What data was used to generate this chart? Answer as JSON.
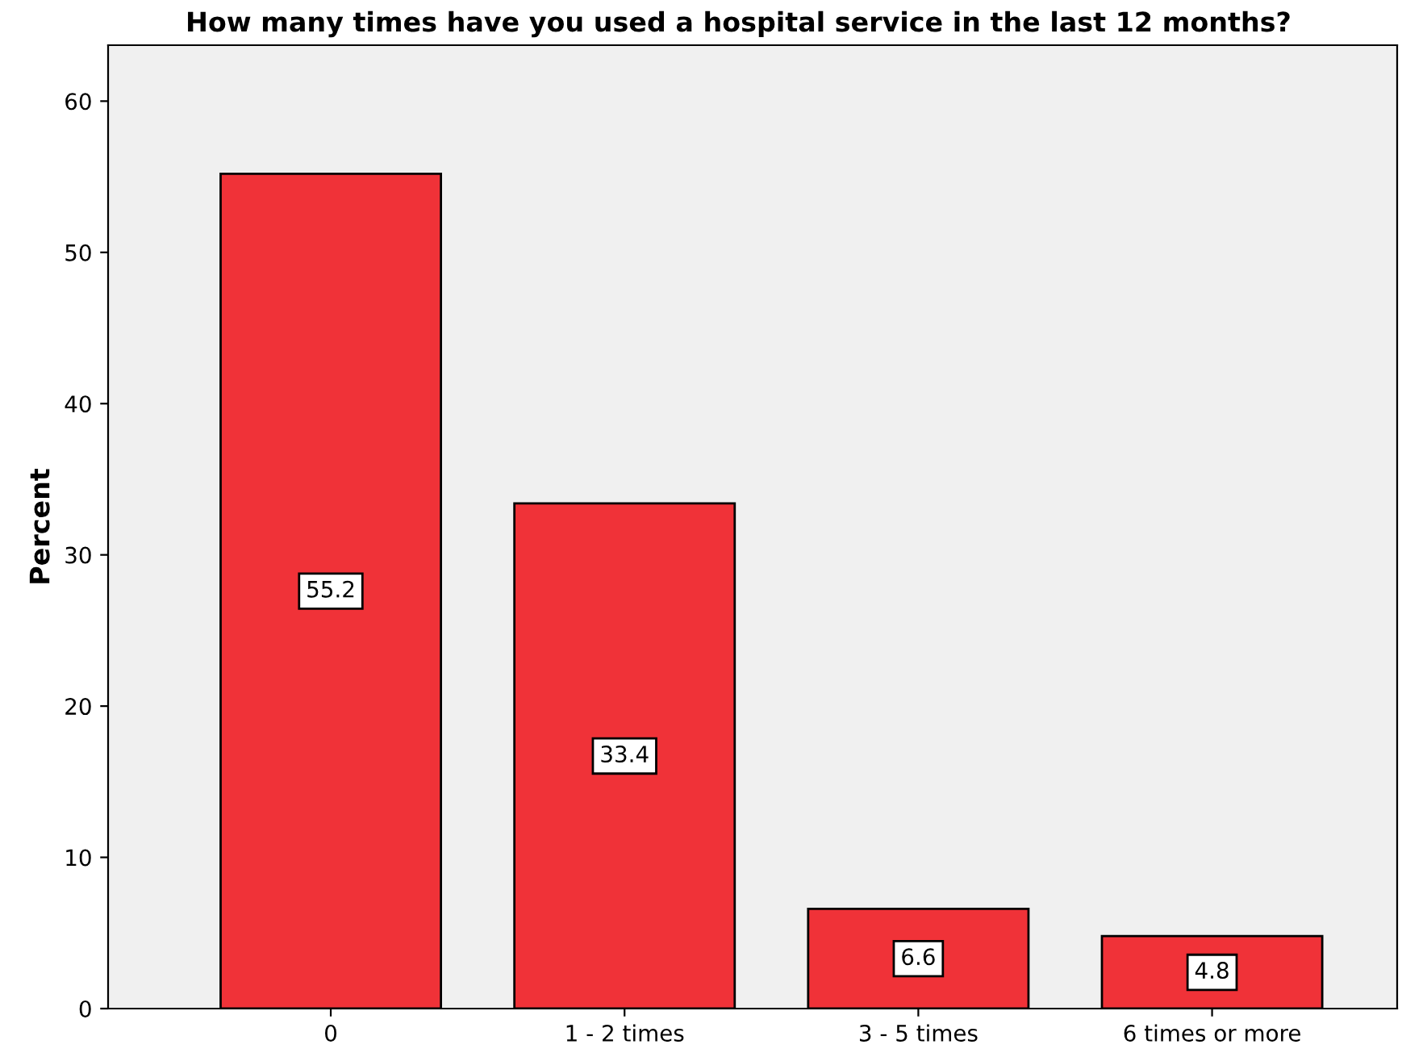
{
  "chart_data": {
    "type": "bar",
    "title": "How many times have you used a hospital service in the last 12 months?",
    "ylabel": "Percent",
    "categories": [
      "0",
      "1 - 2 times",
      "3 - 5 times",
      "6 times or more"
    ],
    "values": [
      55.2,
      33.4,
      6.6,
      4.8
    ],
    "color": "#f03238",
    "ylim": [
      0,
      63.7
    ],
    "yticks": [
      0,
      10,
      20,
      30,
      40,
      50,
      60
    ],
    "grid": false,
    "data_labels": true
  }
}
